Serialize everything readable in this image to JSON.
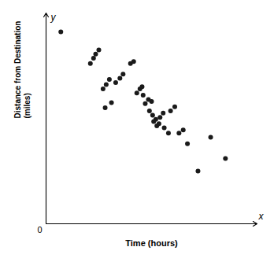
{
  "chart_data": {
    "type": "scatter",
    "xlabel": "Time (hours)",
    "ylabel": "Distance from Destination\n(miles)",
    "color": "#1a1a1a",
    "xlim": [
      0,
      10
    ],
    "ylim": [
      0,
      10
    ],
    "grid": false,
    "tick_labels": false,
    "annotations": [
      {
        "text": "0",
        "x": 0,
        "y": 0
      },
      {
        "text": "x",
        "x": 10,
        "y": 0
      },
      {
        "text": "y",
        "x": 0,
        "y": 10
      }
    ],
    "x": [
      0.7,
      2.1,
      2.25,
      2.35,
      2.5,
      2.7,
      2.85,
      3.0,
      2.8,
      3.1,
      3.3,
      3.5,
      3.65,
      4.0,
      4.15,
      4.3,
      4.45,
      4.55,
      4.6,
      4.7,
      4.85,
      5.0,
      4.9,
      5.05,
      5.2,
      5.1,
      5.25,
      5.35,
      5.4,
      5.55,
      5.6,
      5.8,
      5.9,
      6.1,
      6.3,
      6.5,
      6.7,
      7.2,
      7.8,
      8.5
    ],
    "values": [
      9.1,
      7.6,
      7.85,
      8.05,
      8.25,
      6.4,
      6.6,
      6.85,
      5.5,
      5.75,
      6.7,
      6.9,
      7.1,
      7.6,
      7.7,
      6.2,
      6.4,
      6.5,
      6.1,
      5.7,
      5.9,
      5.8,
      5.35,
      5.15,
      4.95,
      4.85,
      4.65,
      4.75,
      5.05,
      5.25,
      4.55,
      4.3,
      5.35,
      5.55,
      4.3,
      4.45,
      3.8,
      2.5,
      4.1,
      3.1
    ]
  }
}
